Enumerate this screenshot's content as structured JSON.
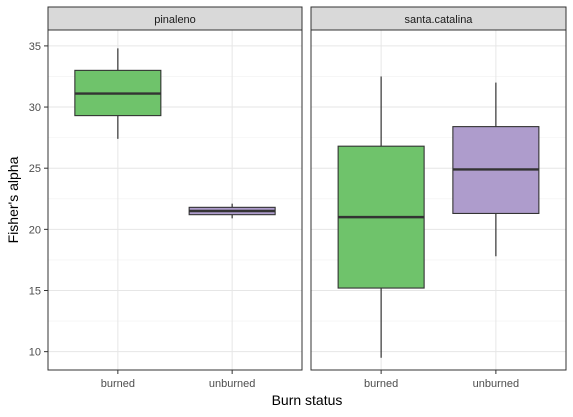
{
  "chart_data": {
    "type": "boxplot",
    "facet_by": "site",
    "xlabel": "Burn status",
    "ylabel": "Fisher's alpha",
    "ylim": [
      8.5,
      36.3
    ],
    "y_ticks": [
      10,
      15,
      20,
      25,
      30,
      35
    ],
    "y_tick_labels": [
      "10",
      "15",
      "20",
      "25",
      "30",
      "35"
    ],
    "y_minor_ticks": [
      12.5,
      17.5,
      22.5,
      27.5,
      32.5
    ],
    "categories": [
      "burned",
      "unburned"
    ],
    "fill_colors": {
      "burned": "#6fc36b",
      "unburned": "#ae9ccc"
    },
    "grid": true,
    "panels": [
      {
        "label": "pinaleno",
        "boxes": [
          {
            "category": "burned",
            "whisker_low": 27.4,
            "q1": 29.3,
            "median": 31.1,
            "q3": 33.0,
            "whisker_high": 34.8
          },
          {
            "category": "unburned",
            "whisker_low": 20.9,
            "q1": 21.2,
            "median": 21.5,
            "q3": 21.8,
            "whisker_high": 22.1
          }
        ]
      },
      {
        "label": "santa.catalina",
        "boxes": [
          {
            "category": "burned",
            "whisker_low": 9.5,
            "q1": 15.2,
            "median": 21.0,
            "q3": 26.8,
            "whisker_high": 32.5
          },
          {
            "category": "unburned",
            "whisker_low": 17.8,
            "q1": 21.3,
            "median": 24.9,
            "q3": 28.4,
            "whisker_high": 32.0
          }
        ]
      }
    ]
  }
}
